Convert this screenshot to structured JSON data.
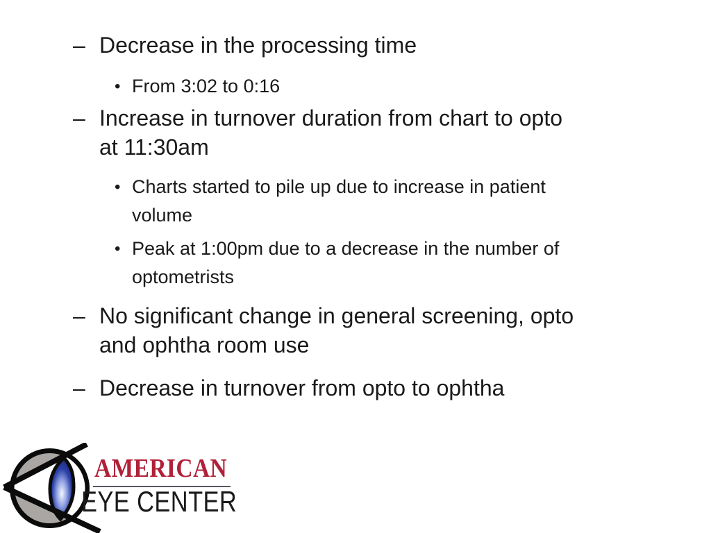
{
  "slide": {
    "bullets": [
      {
        "level": 1,
        "marker": "–",
        "text": "Decrease in the processing time"
      },
      {
        "level": 2,
        "marker": "•",
        "text": "From 3:02 to 0:16"
      },
      {
        "level": 1,
        "marker": "–",
        "text": "Increase in turnover duration from chart to opto\nat 11:30am"
      },
      {
        "level": 2,
        "marker": "•",
        "text": "Charts started to pile up due to increase in patient\nvolume"
      },
      {
        "level": 2,
        "marker": "•",
        "text": "Peak at 1:00pm due to a decrease in the number of\noptometrists"
      },
      {
        "level": 1,
        "marker": "–",
        "text": "No significant change in general screening, opto\nand ophtha room use"
      },
      {
        "level": 1,
        "marker": "–",
        "text": "Decrease in turnover from opto to ophtha"
      }
    ]
  },
  "logo": {
    "icon": "eye-icon",
    "line1": "AMERICAN",
    "line2": "EYE CENTER"
  },
  "colors": {
    "background": "#ffffff",
    "text": "#1a1a1a",
    "logo_red": "#b02038",
    "logo_black": "#1a1a1a",
    "logo_underline": "#55595e",
    "icon_gray": "#a9a6a3",
    "icon_outline": "#0b0b0b",
    "lens_blue": "#2c41a8"
  }
}
